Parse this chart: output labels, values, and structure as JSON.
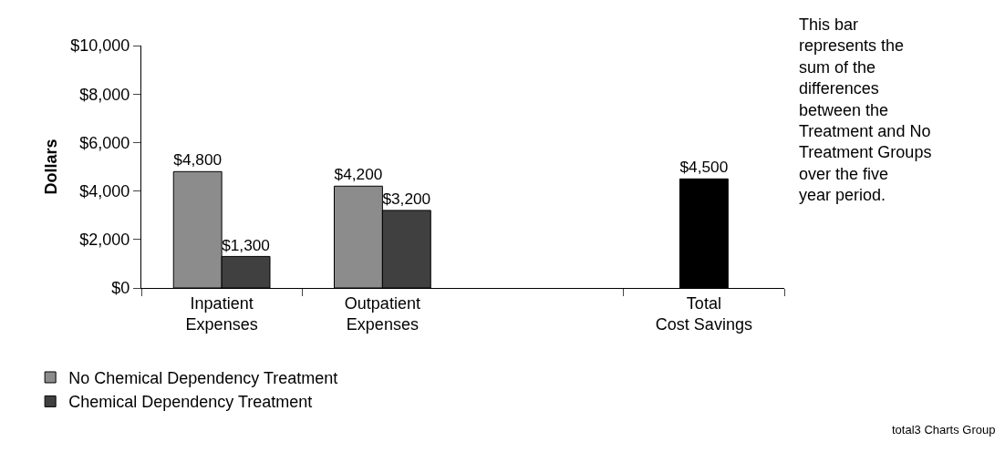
{
  "chart_data": {
    "type": "bar",
    "ylabel": "Dollars",
    "categories": [
      "Inpatient Expenses",
      "Outpatient Expenses",
      null,
      "Total Cost Savings"
    ],
    "series": [
      {
        "name": "No Chemical Dependency Treatment",
        "color": "#8c8c8c",
        "values": [
          4800,
          4200,
          null,
          null
        ],
        "value_labels": [
          "$4,800",
          "$4,200",
          null,
          null
        ]
      },
      {
        "name": "Chemical Dependency Treatment",
        "color": "#404040",
        "values": [
          1300,
          3200,
          null,
          null
        ],
        "value_labels": [
          "$1,300",
          "$3,200",
          null,
          null
        ]
      },
      {
        "color": "#000000",
        "values": [
          null,
          null,
          null,
          4500
        ],
        "value_labels": [
          null,
          null,
          null,
          "$4,500"
        ]
      }
    ],
    "ylim": [
      0,
      10000
    ],
    "yticks": [
      {
        "value": 0,
        "label": "$0"
      },
      {
        "value": 2000,
        "label": "$2,000"
      },
      {
        "value": 4000,
        "label": "$4,000"
      },
      {
        "value": 6000,
        "label": "$6,000"
      },
      {
        "value": 8000,
        "label": "$8,000"
      },
      {
        "value": 10000,
        "label": "$10,000"
      }
    ],
    "grid": false,
    "legend": "bottom left",
    "annotations": [
      "This bar represents the sum of the differences between the Treatment and No Treatment Groups over the five year period.",
      "total3 Charts Group"
    ]
  }
}
